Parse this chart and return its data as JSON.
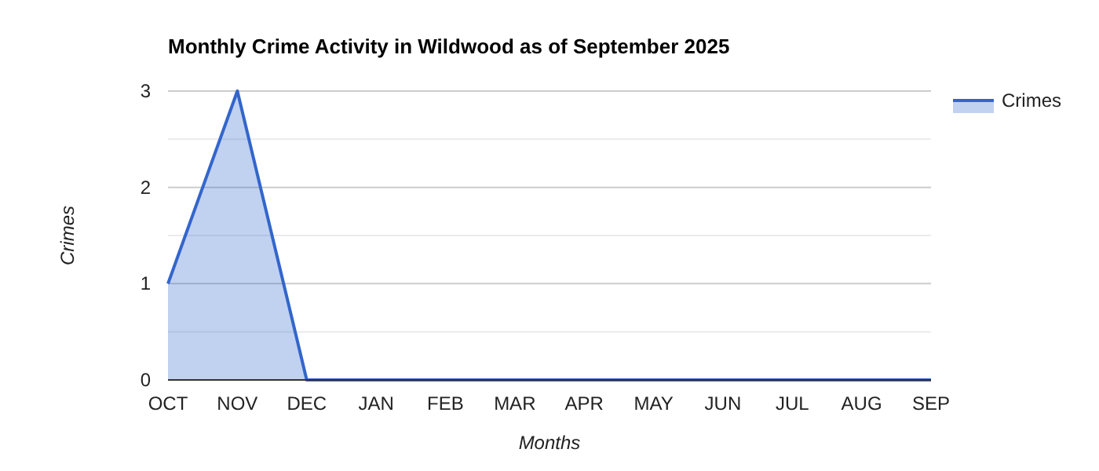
{
  "chart_data": {
    "type": "area",
    "title": "Monthly Crime Activity in Wildwood as of September 2025",
    "xlabel": "Months",
    "ylabel": "Crimes",
    "categories": [
      "OCT",
      "NOV",
      "DEC",
      "JAN",
      "FEB",
      "MAR",
      "APR",
      "MAY",
      "JUN",
      "JUL",
      "AUG",
      "SEP"
    ],
    "series": [
      {
        "name": "Crimes",
        "color": "#3366cc",
        "values": [
          1,
          3,
          0,
          0,
          0,
          0,
          0,
          0,
          0,
          0,
          0,
          0
        ]
      }
    ],
    "ylim": [
      0,
      3
    ],
    "yticks": [
      0,
      {
        "value": 0.5,
        "label": null
      },
      1,
      {
        "value": 1.5,
        "label": null
      },
      2,
      {
        "value": 2.5,
        "label": null
      },
      3
    ],
    "grid": true,
    "legend": "right"
  }
}
